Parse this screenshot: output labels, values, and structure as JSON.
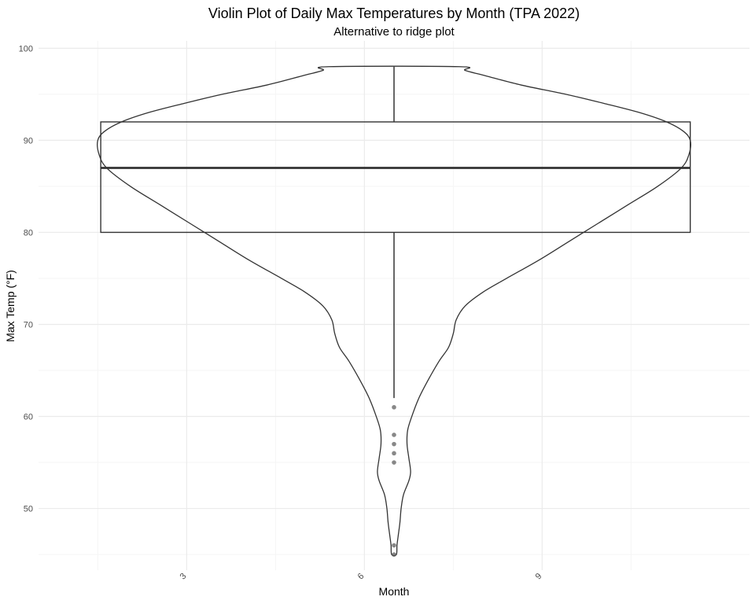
{
  "chart_data": {
    "type": "violin",
    "title": "Violin Plot of Daily Max Temperatures by Month (TPA 2022)",
    "subtitle": "Alternative to ridge plot",
    "xlabel": "Month",
    "ylabel": "Max Temp (°F)",
    "xlim": [
      0.5,
      12.5
    ],
    "ylim": [
      43.3,
      100.8
    ],
    "x_ticks": [
      3,
      6,
      9
    ],
    "x_tick_labels": [
      "3",
      "6",
      "9"
    ],
    "y_ticks": [
      50,
      60,
      70,
      80,
      90,
      100
    ],
    "y_tick_labels": [
      "50",
      "60",
      "70",
      "80",
      "90",
      "100"
    ],
    "grid": true,
    "legend": "none",
    "violin": {
      "center_x": 6.5,
      "max_half_width": 5.0,
      "density_profile": [
        {
          "y": 45.0,
          "hw": 0.04
        },
        {
          "y": 46.0,
          "hw": 0.05
        },
        {
          "y": 47.0,
          "hw": 0.07
        },
        {
          "y": 48.5,
          "hw": 0.1
        },
        {
          "y": 50.0,
          "hw": 0.12
        },
        {
          "y": 51.5,
          "hw": 0.16
        },
        {
          "y": 53.0,
          "hw": 0.25
        },
        {
          "y": 54.0,
          "hw": 0.28
        },
        {
          "y": 55.5,
          "hw": 0.25
        },
        {
          "y": 57.0,
          "hw": 0.22
        },
        {
          "y": 58.5,
          "hw": 0.23
        },
        {
          "y": 60.0,
          "hw": 0.3
        },
        {
          "y": 62.0,
          "hw": 0.42
        },
        {
          "y": 64.0,
          "hw": 0.58
        },
        {
          "y": 66.0,
          "hw": 0.76
        },
        {
          "y": 67.5,
          "hw": 0.92
        },
        {
          "y": 69.0,
          "hw": 1.0
        },
        {
          "y": 70.5,
          "hw": 1.05
        },
        {
          "y": 72.0,
          "hw": 1.2
        },
        {
          "y": 73.5,
          "hw": 1.5
        },
        {
          "y": 75.0,
          "hw": 1.9
        },
        {
          "y": 77.0,
          "hw": 2.45
        },
        {
          "y": 79.0,
          "hw": 2.95
        },
        {
          "y": 81.0,
          "hw": 3.45
        },
        {
          "y": 83.0,
          "hw": 3.95
        },
        {
          "y": 85.0,
          "hw": 4.45
        },
        {
          "y": 87.0,
          "hw": 4.85
        },
        {
          "y": 88.5,
          "hw": 4.98
        },
        {
          "y": 90.0,
          "hw": 5.0
        },
        {
          "y": 91.0,
          "hw": 4.88
        },
        {
          "y": 92.0,
          "hw": 4.6
        },
        {
          "y": 93.0,
          "hw": 4.15
        },
        {
          "y": 94.0,
          "hw": 3.55
        },
        {
          "y": 95.0,
          "hw": 2.9
        },
        {
          "y": 96.0,
          "hw": 2.15
        },
        {
          "y": 97.0,
          "hw": 1.55
        },
        {
          "y": 97.6,
          "hw": 1.2
        },
        {
          "y": 98.0,
          "hw": 1.1
        }
      ]
    },
    "boxplot": {
      "xmin": 1.55,
      "xmax": 11.5,
      "q1": 80,
      "median": 87,
      "q3": 92,
      "whisker_low": 62,
      "whisker_high": 98,
      "whisker_x": 6.5
    },
    "outliers": [
      {
        "x": 6.5,
        "y": 61
      },
      {
        "x": 6.5,
        "y": 58
      },
      {
        "x": 6.5,
        "y": 57
      },
      {
        "x": 6.5,
        "y": 56
      },
      {
        "x": 6.5,
        "y": 55
      },
      {
        "x": 6.5,
        "y": 46
      },
      {
        "x": 6.5,
        "y": 45
      }
    ],
    "colors": {
      "violin_line": "#333333",
      "box_line": "#333333",
      "median_line": "#333333",
      "outlier": "#555555",
      "grid_major": "#ebebeb",
      "grid_minor": "#f5f5f5"
    }
  }
}
